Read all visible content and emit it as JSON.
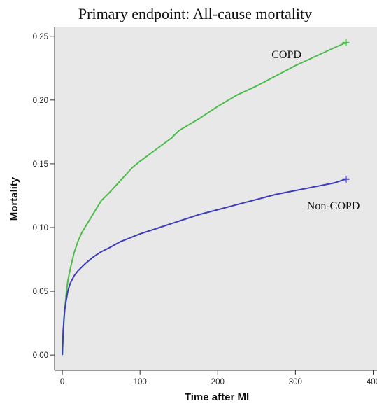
{
  "chart_data": {
    "type": "line",
    "title": "Primary endpoint: All-cause mortality",
    "xlabel": "Time after MI",
    "ylabel": "Mortality",
    "xlim": [
      -10,
      405
    ],
    "ylim": [
      -0.012,
      0.257
    ],
    "x_ticks": [
      0,
      100,
      200,
      300,
      400
    ],
    "y_ticks": [
      0.0,
      0.05,
      0.1,
      0.15,
      0.2,
      0.25
    ],
    "x_tick_labels": [
      "0",
      "100",
      "200",
      "300",
      "400"
    ],
    "y_tick_labels": [
      "0.00",
      "0.05",
      "0.10",
      "0.15",
      "0.20",
      "0.25"
    ],
    "grid": false,
    "plot_background": "#e8e8e8",
    "series": [
      {
        "name": "COPD",
        "color": "#4cbb4c",
        "end_marker": "+",
        "x": [
          0,
          1,
          2,
          3,
          5,
          7,
          10,
          15,
          20,
          25,
          30,
          40,
          50,
          60,
          75,
          90,
          100,
          120,
          140,
          150,
          175,
          200,
          225,
          250,
          275,
          300,
          325,
          350,
          365
        ],
        "y": [
          0.0,
          0.015,
          0.025,
          0.035,
          0.048,
          0.058,
          0.067,
          0.08,
          0.089,
          0.096,
          0.101,
          0.111,
          0.121,
          0.127,
          0.137,
          0.147,
          0.152,
          0.161,
          0.17,
          0.176,
          0.185,
          0.195,
          0.204,
          0.211,
          0.219,
          0.227,
          0.234,
          0.241,
          0.245
        ]
      },
      {
        "name": "Non-COPD",
        "color": "#3d3dbb",
        "end_marker": "+",
        "x": [
          0,
          1,
          2,
          3,
          5,
          7,
          10,
          15,
          20,
          25,
          30,
          40,
          50,
          60,
          75,
          100,
          125,
          150,
          175,
          200,
          225,
          250,
          275,
          300,
          325,
          350,
          365
        ],
        "y": [
          0.0,
          0.018,
          0.028,
          0.035,
          0.043,
          0.05,
          0.056,
          0.062,
          0.066,
          0.069,
          0.072,
          0.077,
          0.081,
          0.084,
          0.089,
          0.095,
          0.1,
          0.105,
          0.11,
          0.114,
          0.118,
          0.122,
          0.126,
          0.129,
          0.132,
          0.135,
          0.138
        ]
      }
    ]
  }
}
